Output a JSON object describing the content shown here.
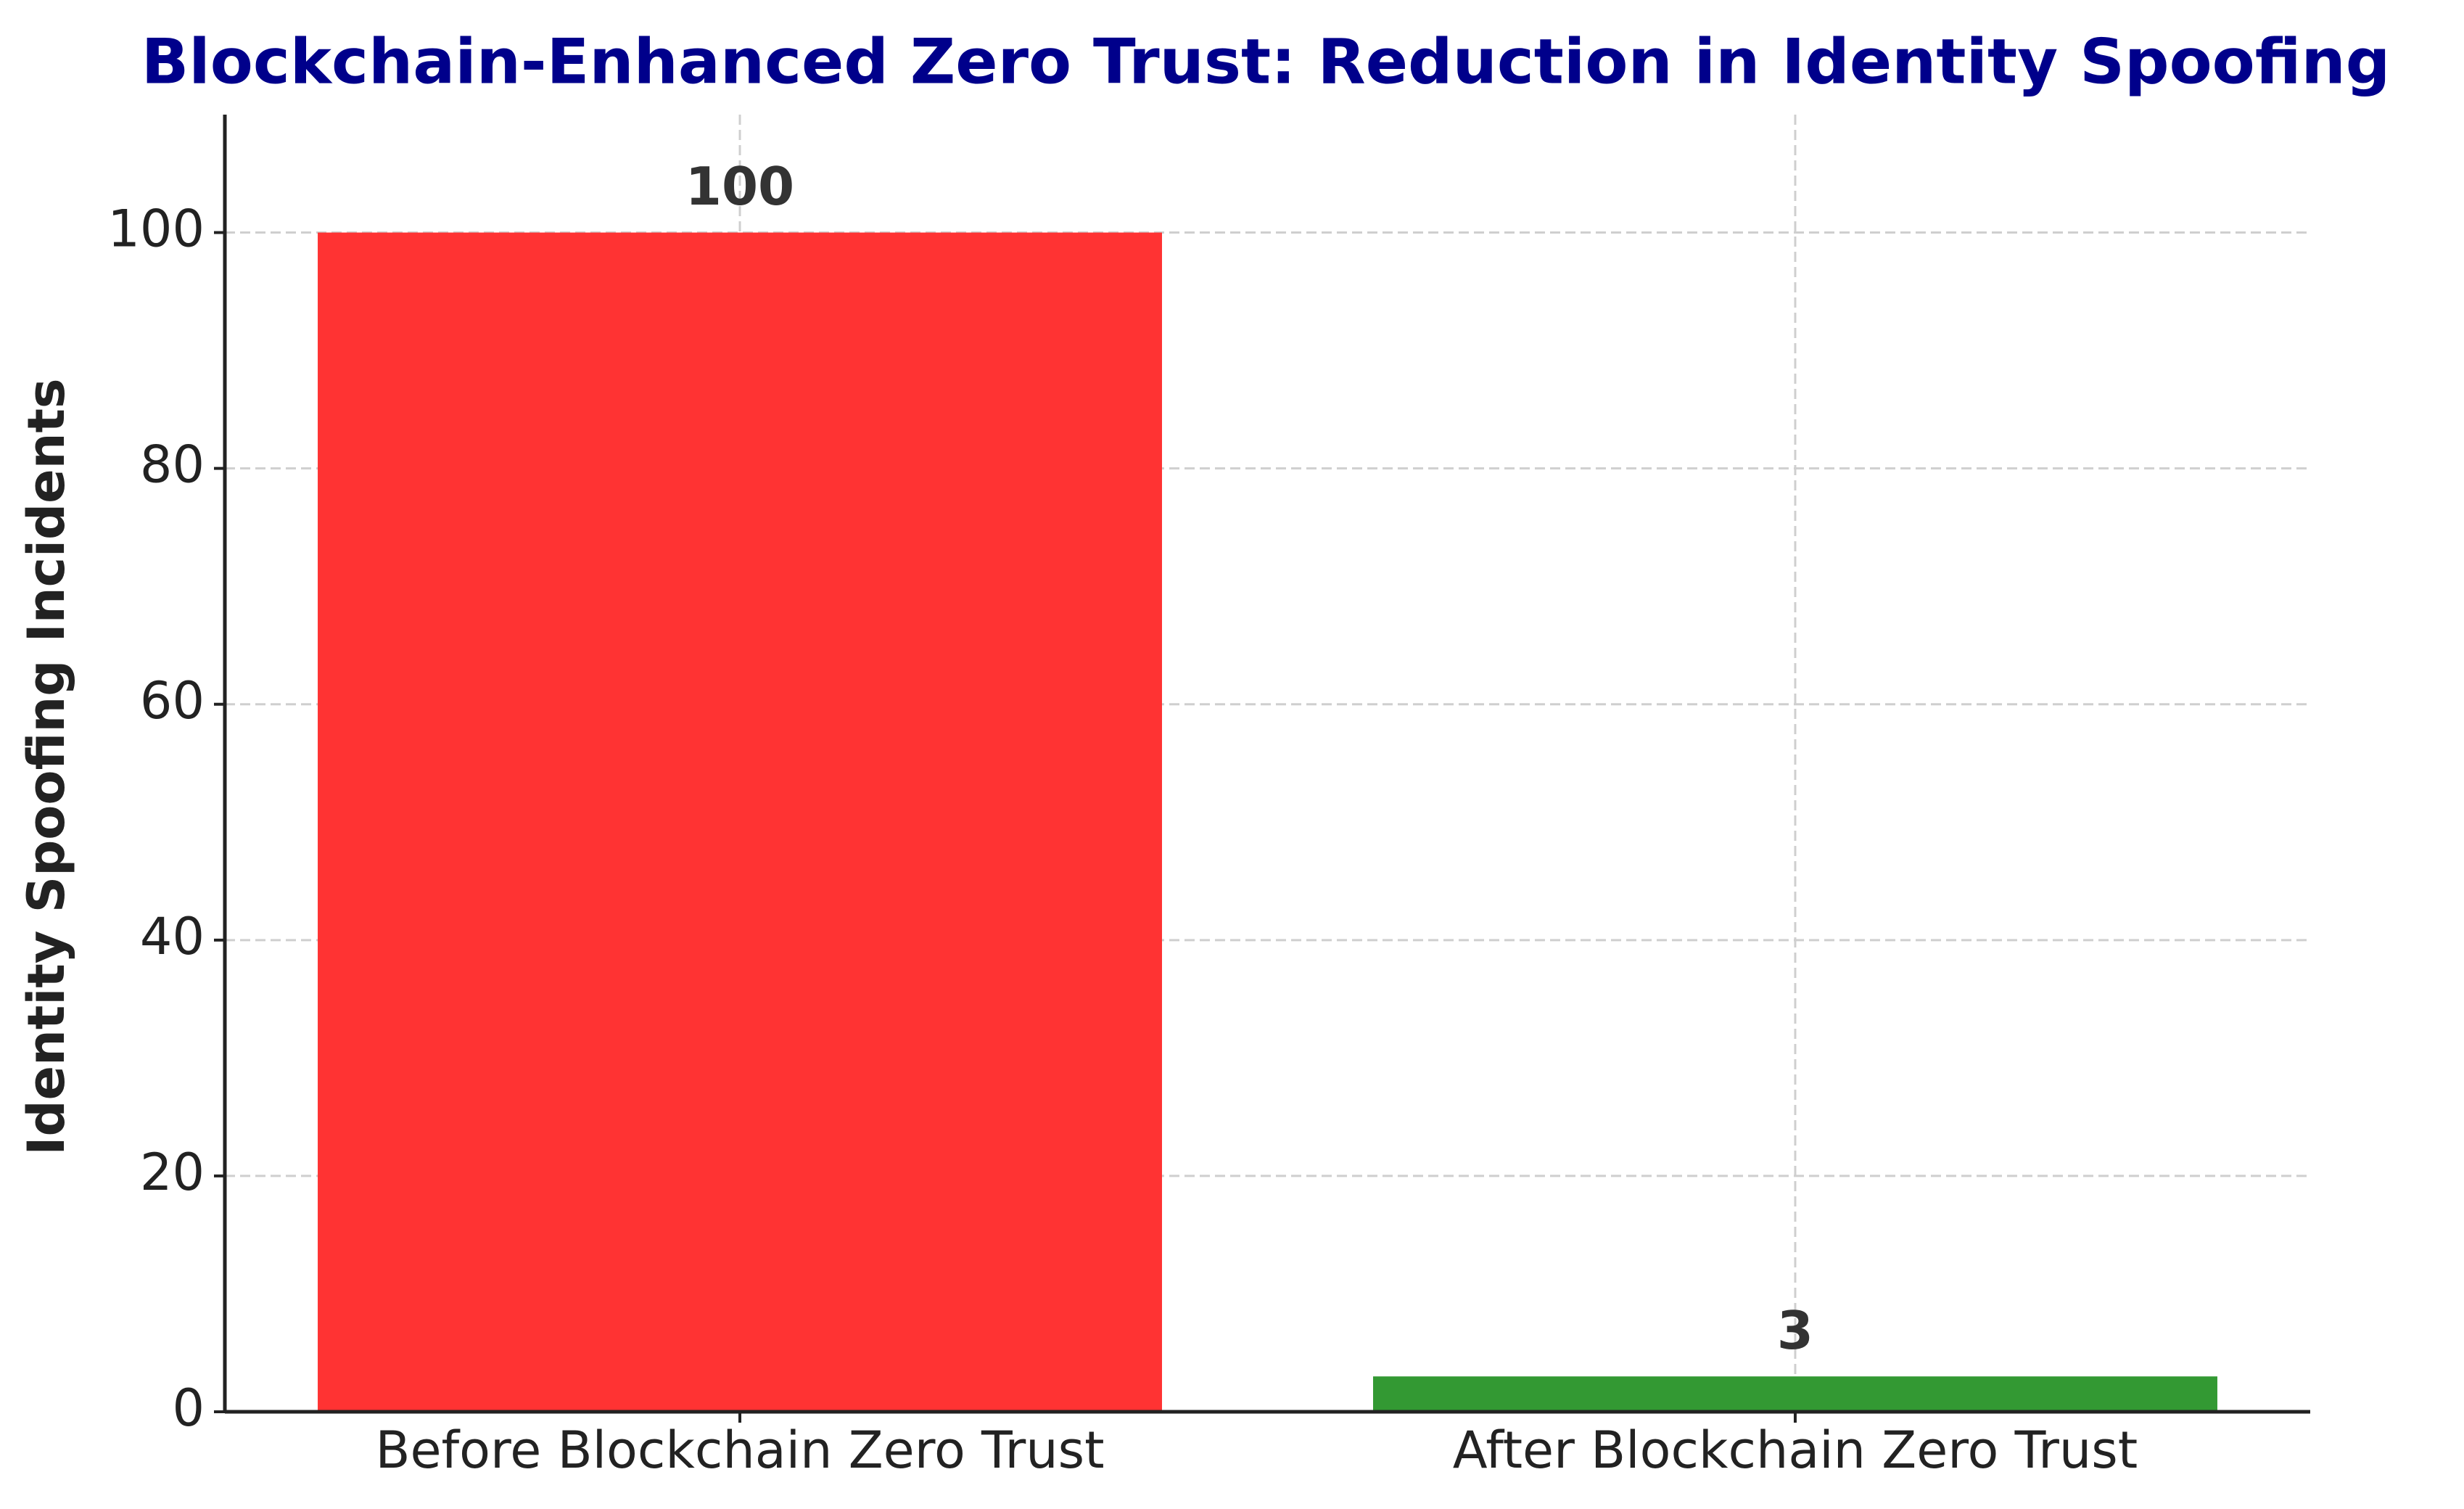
{
  "chart_data": {
    "type": "bar",
    "title": "Blockchain-Enhanced Zero Trust: Reduction in Identity Spoofing",
    "y_label": "Identity Spoofing Incidents",
    "categories": [
      "Before Blockchain Zero Trust",
      "After Blockchain Zero Trust"
    ],
    "values": [
      100,
      3
    ],
    "colors": [
      "#ff3333",
      "#339933"
    ],
    "ylim": [
      0,
      110
    ],
    "yticks": [
      0,
      20,
      40,
      60,
      80,
      100
    ],
    "grid": true
  }
}
